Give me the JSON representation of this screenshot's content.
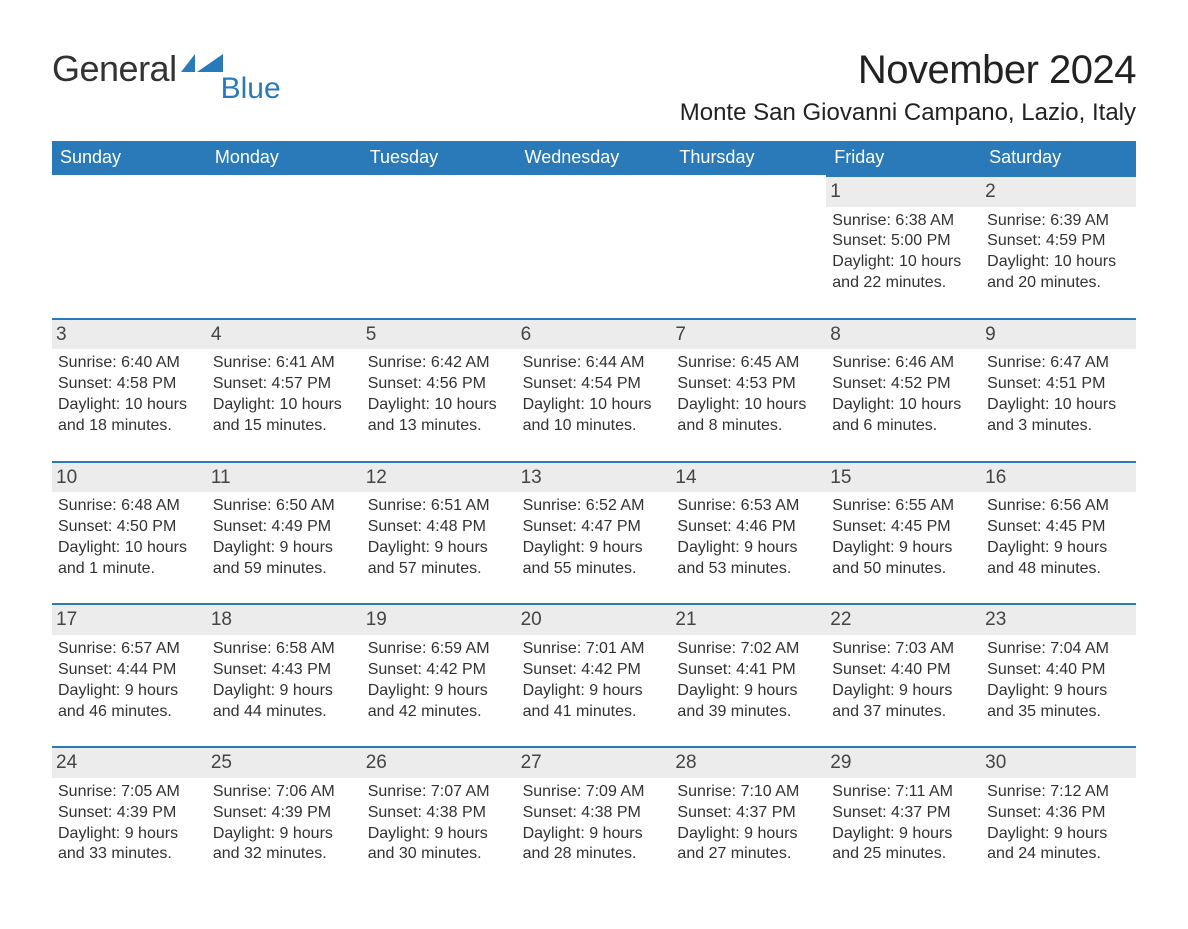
{
  "brand": {
    "word1": "General",
    "word2": "Blue",
    "accent_color": "#2a7ab9",
    "text_color": "#323232"
  },
  "title": {
    "month_year": "November 2024",
    "location": "Monte San Giovanni Campano, Lazio, Italy"
  },
  "calendar": {
    "header_bg": "#2a7ab9",
    "header_fg": "#ffffff",
    "daynum_bg": "#ececec",
    "row_border": "#2a7ab9",
    "text_color": "#323232",
    "background_color": "#ffffff",
    "days_of_week": [
      "Sunday",
      "Monday",
      "Tuesday",
      "Wednesday",
      "Thursday",
      "Friday",
      "Saturday"
    ],
    "weeks": [
      [
        null,
        null,
        null,
        null,
        null,
        {
          "n": "1",
          "sunrise": "6:38 AM",
          "sunset": "5:00 PM",
          "daylight": "10 hours and 22 minutes."
        },
        {
          "n": "2",
          "sunrise": "6:39 AM",
          "sunset": "4:59 PM",
          "daylight": "10 hours and 20 minutes."
        }
      ],
      [
        {
          "n": "3",
          "sunrise": "6:40 AM",
          "sunset": "4:58 PM",
          "daylight": "10 hours and 18 minutes."
        },
        {
          "n": "4",
          "sunrise": "6:41 AM",
          "sunset": "4:57 PM",
          "daylight": "10 hours and 15 minutes."
        },
        {
          "n": "5",
          "sunrise": "6:42 AM",
          "sunset": "4:56 PM",
          "daylight": "10 hours and 13 minutes."
        },
        {
          "n": "6",
          "sunrise": "6:44 AM",
          "sunset": "4:54 PM",
          "daylight": "10 hours and 10 minutes."
        },
        {
          "n": "7",
          "sunrise": "6:45 AM",
          "sunset": "4:53 PM",
          "daylight": "10 hours and 8 minutes."
        },
        {
          "n": "8",
          "sunrise": "6:46 AM",
          "sunset": "4:52 PM",
          "daylight": "10 hours and 6 minutes."
        },
        {
          "n": "9",
          "sunrise": "6:47 AM",
          "sunset": "4:51 PM",
          "daylight": "10 hours and 3 minutes."
        }
      ],
      [
        {
          "n": "10",
          "sunrise": "6:48 AM",
          "sunset": "4:50 PM",
          "daylight": "10 hours and 1 minute."
        },
        {
          "n": "11",
          "sunrise": "6:50 AM",
          "sunset": "4:49 PM",
          "daylight": "9 hours and 59 minutes."
        },
        {
          "n": "12",
          "sunrise": "6:51 AM",
          "sunset": "4:48 PM",
          "daylight": "9 hours and 57 minutes."
        },
        {
          "n": "13",
          "sunrise": "6:52 AM",
          "sunset": "4:47 PM",
          "daylight": "9 hours and 55 minutes."
        },
        {
          "n": "14",
          "sunrise": "6:53 AM",
          "sunset": "4:46 PM",
          "daylight": "9 hours and 53 minutes."
        },
        {
          "n": "15",
          "sunrise": "6:55 AM",
          "sunset": "4:45 PM",
          "daylight": "9 hours and 50 minutes."
        },
        {
          "n": "16",
          "sunrise": "6:56 AM",
          "sunset": "4:45 PM",
          "daylight": "9 hours and 48 minutes."
        }
      ],
      [
        {
          "n": "17",
          "sunrise": "6:57 AM",
          "sunset": "4:44 PM",
          "daylight": "9 hours and 46 minutes."
        },
        {
          "n": "18",
          "sunrise": "6:58 AM",
          "sunset": "4:43 PM",
          "daylight": "9 hours and 44 minutes."
        },
        {
          "n": "19",
          "sunrise": "6:59 AM",
          "sunset": "4:42 PM",
          "daylight": "9 hours and 42 minutes."
        },
        {
          "n": "20",
          "sunrise": "7:01 AM",
          "sunset": "4:42 PM",
          "daylight": "9 hours and 41 minutes."
        },
        {
          "n": "21",
          "sunrise": "7:02 AM",
          "sunset": "4:41 PM",
          "daylight": "9 hours and 39 minutes."
        },
        {
          "n": "22",
          "sunrise": "7:03 AM",
          "sunset": "4:40 PM",
          "daylight": "9 hours and 37 minutes."
        },
        {
          "n": "23",
          "sunrise": "7:04 AM",
          "sunset": "4:40 PM",
          "daylight": "9 hours and 35 minutes."
        }
      ],
      [
        {
          "n": "24",
          "sunrise": "7:05 AM",
          "sunset": "4:39 PM",
          "daylight": "9 hours and 33 minutes."
        },
        {
          "n": "25",
          "sunrise": "7:06 AM",
          "sunset": "4:39 PM",
          "daylight": "9 hours and 32 minutes."
        },
        {
          "n": "26",
          "sunrise": "7:07 AM",
          "sunset": "4:38 PM",
          "daylight": "9 hours and 30 minutes."
        },
        {
          "n": "27",
          "sunrise": "7:09 AM",
          "sunset": "4:38 PM",
          "daylight": "9 hours and 28 minutes."
        },
        {
          "n": "28",
          "sunrise": "7:10 AM",
          "sunset": "4:37 PM",
          "daylight": "9 hours and 27 minutes."
        },
        {
          "n": "29",
          "sunrise": "7:11 AM",
          "sunset": "4:37 PM",
          "daylight": "9 hours and 25 minutes."
        },
        {
          "n": "30",
          "sunrise": "7:12 AM",
          "sunset": "4:36 PM",
          "daylight": "9 hours and 24 minutes."
        }
      ]
    ]
  },
  "labels": {
    "sunrise": "Sunrise: ",
    "sunset": "Sunset: ",
    "daylight": "Daylight: "
  }
}
